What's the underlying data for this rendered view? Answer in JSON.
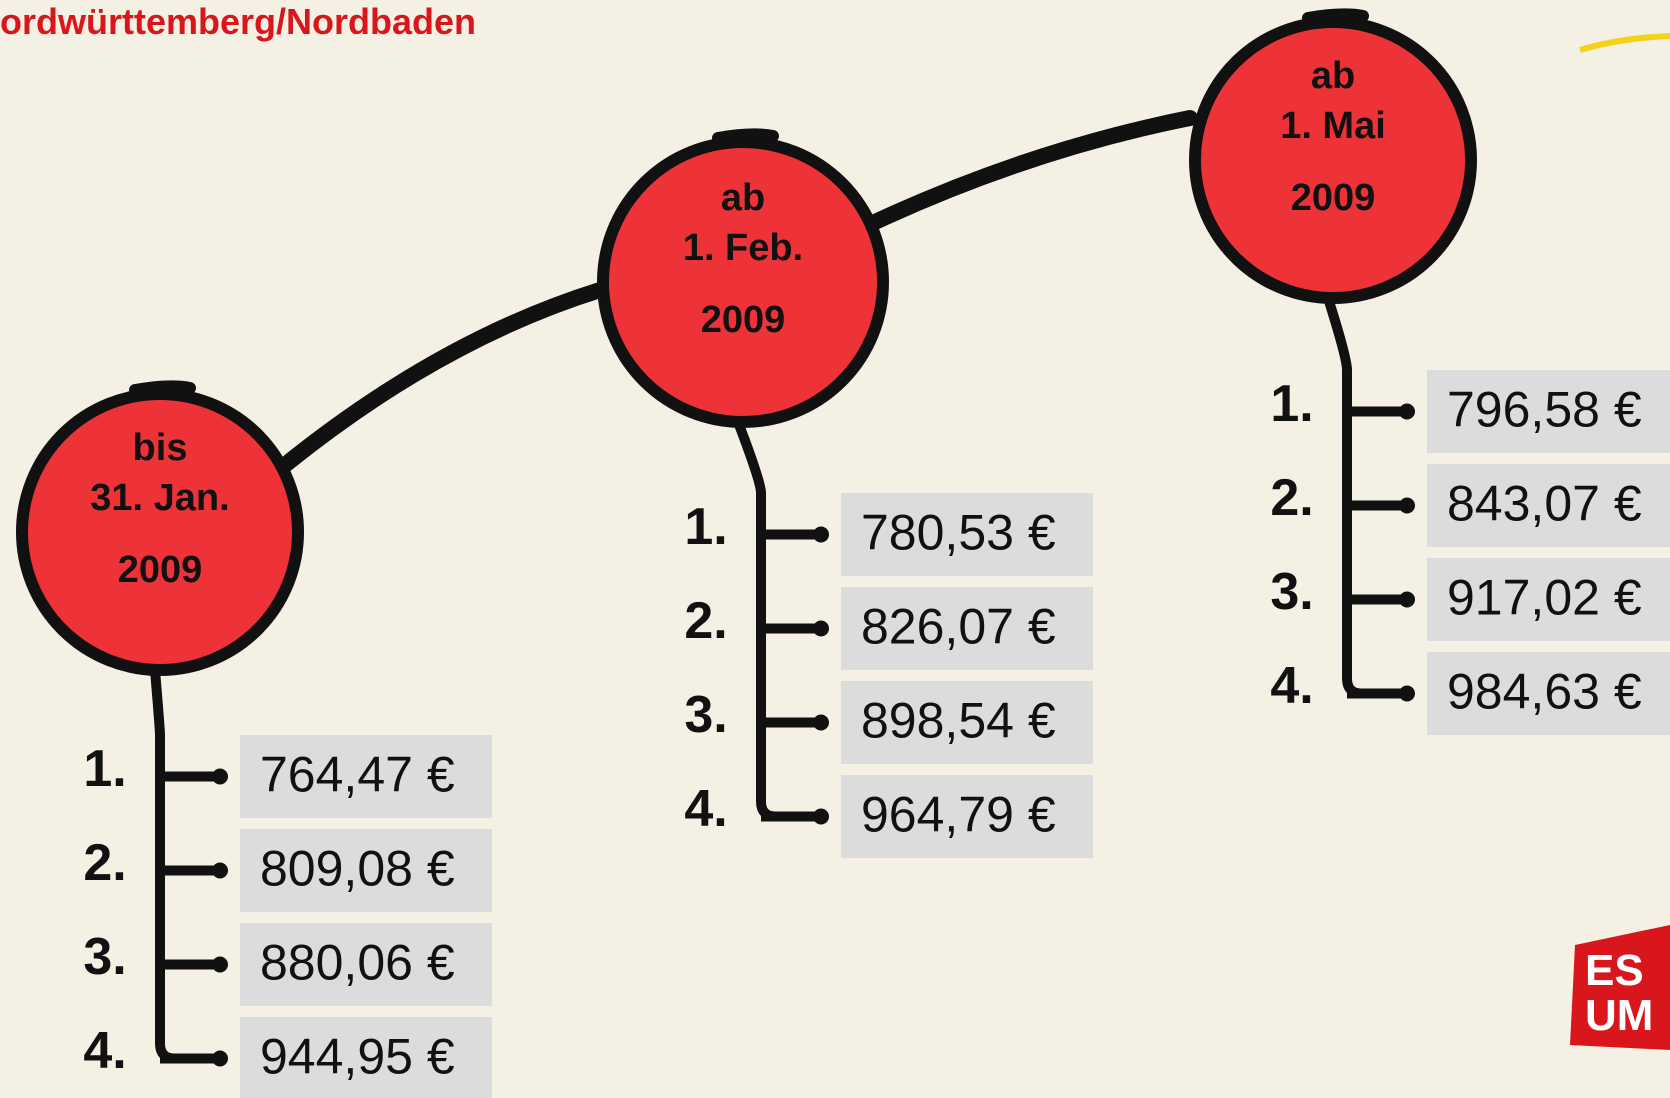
{
  "header": {
    "title": "ordwürttemberg/Nordbaden"
  },
  "stages": [
    {
      "label": [
        "bis",
        "31. Jan.",
        "2009"
      ],
      "items": [
        {
          "rank": "1.",
          "amount": "764,47 €"
        },
        {
          "rank": "2.",
          "amount": "809,08 €"
        },
        {
          "rank": "3.",
          "amount": "880,06 €"
        },
        {
          "rank": "4.",
          "amount": "944,95 €"
        }
      ]
    },
    {
      "label": [
        "ab",
        "1. Feb.",
        "2009"
      ],
      "items": [
        {
          "rank": "1.",
          "amount": "780,53 €"
        },
        {
          "rank": "2.",
          "amount": "826,07 €"
        },
        {
          "rank": "3.",
          "amount": "898,54 €"
        },
        {
          "rank": "4.",
          "amount": "964,79 €"
        }
      ]
    },
    {
      "label": [
        "ab",
        "1. Mai",
        "2009"
      ],
      "items": [
        {
          "rank": "1.",
          "amount": "796,58 €"
        },
        {
          "rank": "2.",
          "amount": "843,07 €"
        },
        {
          "rank": "3.",
          "amount": "917,02 €"
        },
        {
          "rank": "4.",
          "amount": "984,63 €"
        }
      ]
    }
  ],
  "logo": [
    "ES",
    "UM"
  ]
}
